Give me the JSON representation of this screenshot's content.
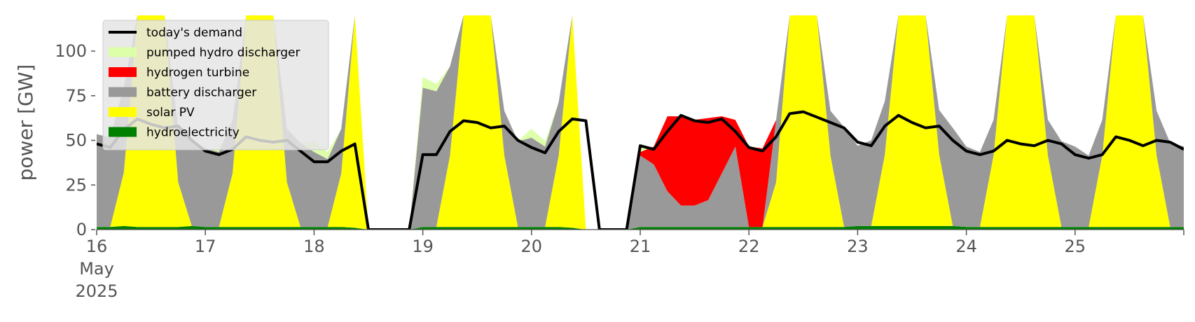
{
  "chart_data": {
    "type": "area",
    "title": "",
    "xlabel": "",
    "ylabel": "power [GW]",
    "ylim": [
      0,
      120
    ],
    "xlim": [
      "2025-05-16",
      "2025-05-26"
    ],
    "y_ticks": [
      0,
      25,
      50,
      75,
      100
    ],
    "y_tick_labels": [
      "0",
      "25",
      "50",
      "75",
      "100"
    ],
    "x_ticks": [
      {
        "date": "2025-05-16",
        "lines": [
          "16",
          "May",
          "2025"
        ]
      },
      {
        "date": "2025-05-17",
        "lines": [
          "17"
        ]
      },
      {
        "date": "2025-05-18",
        "lines": [
          "18"
        ]
      },
      {
        "date": "2025-05-19",
        "lines": [
          "19"
        ]
      },
      {
        "date": "2025-05-20",
        "lines": [
          "20"
        ]
      },
      {
        "date": "2025-05-21",
        "lines": [
          "21"
        ]
      },
      {
        "date": "2025-05-22",
        "lines": [
          "22"
        ]
      },
      {
        "date": "2025-05-23",
        "lines": [
          "23"
        ]
      },
      {
        "date": "2025-05-24",
        "lines": [
          "24"
        ]
      },
      {
        "date": "2025-05-25",
        "lines": [
          "25"
        ]
      }
    ],
    "grid": false,
    "background": "#ffffff",
    "legend": {
      "position": "top-left",
      "entries": [
        {
          "label": "today's demand",
          "kind": "line",
          "color": "#000000"
        },
        {
          "label": "pumped hydro discharger",
          "kind": "patch",
          "color": "#ddffaa"
        },
        {
          "label": "hydrogen turbine",
          "kind": "patch",
          "color": "#ff0000"
        },
        {
          "label": "battery discharger",
          "kind": "patch",
          "color": "#999999"
        },
        {
          "label": "solar PV",
          "kind": "patch",
          "color": "#ffff00"
        },
        {
          "label": "hydroelectricity",
          "kind": "patch",
          "color": "#008000"
        }
      ]
    },
    "x": [
      "2025-05-16 00:00",
      "2025-05-16 03:00",
      "2025-05-16 06:00",
      "2025-05-16 09:00",
      "2025-05-16 12:00",
      "2025-05-16 15:00",
      "2025-05-16 18:00",
      "2025-05-16 21:00",
      "2025-05-17 00:00",
      "2025-05-17 03:00",
      "2025-05-17 06:00",
      "2025-05-17 09:00",
      "2025-05-17 12:00",
      "2025-05-17 15:00",
      "2025-05-17 18:00",
      "2025-05-17 21:00",
      "2025-05-18 00:00",
      "2025-05-18 03:00",
      "2025-05-18 06:00",
      "2025-05-18 09:00",
      "2025-05-18 12:00",
      "2025-05-18 15:00",
      "2025-05-18 18:00",
      "2025-05-18 21:00",
      "2025-05-19 00:00",
      "2025-05-19 03:00",
      "2025-05-19 06:00",
      "2025-05-19 09:00",
      "2025-05-19 12:00",
      "2025-05-19 15:00",
      "2025-05-19 18:00",
      "2025-05-19 21:00",
      "2025-05-20 00:00",
      "2025-05-20 03:00",
      "2025-05-20 06:00",
      "2025-05-20 09:00",
      "2025-05-20 12:00",
      "2025-05-20 15:00",
      "2025-05-20 18:00",
      "2025-05-20 21:00",
      "2025-05-21 00:00",
      "2025-05-21 03:00",
      "2025-05-21 06:00",
      "2025-05-21 09:00",
      "2025-05-21 12:00",
      "2025-05-21 15:00",
      "2025-05-21 18:00",
      "2025-05-21 21:00",
      "2025-05-22 00:00",
      "2025-05-22 03:00",
      "2025-05-22 06:00",
      "2025-05-22 09:00",
      "2025-05-22 12:00",
      "2025-05-22 15:00",
      "2025-05-22 18:00",
      "2025-05-22 21:00",
      "2025-05-23 00:00",
      "2025-05-23 03:00",
      "2025-05-23 06:00",
      "2025-05-23 09:00",
      "2025-05-23 12:00",
      "2025-05-23 15:00",
      "2025-05-23 18:00",
      "2025-05-23 21:00",
      "2025-05-24 00:00",
      "2025-05-24 03:00",
      "2025-05-24 06:00",
      "2025-05-24 09:00",
      "2025-05-24 12:00",
      "2025-05-24 15:00",
      "2025-05-24 18:00",
      "2025-05-24 21:00",
      "2025-05-25 00:00",
      "2025-05-25 03:00",
      "2025-05-25 06:00",
      "2025-05-25 09:00",
      "2025-05-25 12:00",
      "2025-05-25 15:00",
      "2025-05-25 18:00",
      "2025-05-25 21:00",
      "2025-05-26 00:00"
    ],
    "series": [
      {
        "name": "hydroelectricity",
        "kind": "stacked-area",
        "color": "#008000",
        "values": [
          1.5,
          1.5,
          2,
          1.5,
          1.5,
          1.5,
          1.5,
          2,
          1.5,
          1.5,
          1.5,
          1.5,
          1.5,
          1.5,
          1.5,
          1.5,
          1.5,
          1.5,
          1.5,
          1,
          0,
          0,
          0,
          0,
          1.5,
          1.5,
          1.5,
          1.5,
          1.5,
          1.5,
          1.5,
          1.5,
          1.5,
          1.5,
          1.5,
          1,
          0,
          0,
          0,
          0,
          1.5,
          1.5,
          1.5,
          1.5,
          1.5,
          1.5,
          1.5,
          1.5,
          1.5,
          1.5,
          1.5,
          1.5,
          1.5,
          1.5,
          1.5,
          1.5,
          2,
          2,
          2,
          2,
          2,
          2,
          2,
          2,
          1.5,
          1.5,
          1.5,
          1.5,
          1.5,
          1.5,
          1.5,
          1.5,
          1.5,
          1.5,
          1.5,
          1.5,
          1.5,
          1.5,
          1.5,
          1.5,
          1.5
        ]
      },
      {
        "name": "solar PV",
        "kind": "stacked-area",
        "color": "#ffff00",
        "values": [
          0,
          0,
          30,
          130,
          130,
          130,
          25,
          0,
          0,
          0,
          30,
          130,
          130,
          130,
          25,
          0,
          0,
          0,
          30,
          130,
          0,
          0,
          0,
          0,
          0,
          0,
          40,
          130,
          130,
          130,
          40,
          0,
          0,
          0,
          40,
          130,
          0,
          0,
          0,
          0,
          0,
          0,
          0,
          0,
          0,
          0,
          0,
          0,
          0,
          0,
          25,
          130,
          130,
          130,
          40,
          0,
          0,
          0,
          40,
          130,
          130,
          130,
          40,
          0,
          0,
          0,
          40,
          130,
          130,
          130,
          40,
          0,
          0,
          0,
          40,
          130,
          130,
          130,
          40,
          0,
          0
        ]
      },
      {
        "name": "battery discharger",
        "kind": "stacked-area",
        "color": "#999999",
        "values": [
          52,
          50,
          48,
          0,
          0,
          0,
          30,
          47,
          44,
          42,
          30,
          0,
          0,
          0,
          30,
          47,
          42,
          38,
          25,
          0,
          0,
          0,
          0,
          0,
          78,
          76,
          50,
          0,
          0,
          0,
          25,
          48,
          50,
          45,
          30,
          0,
          0,
          0,
          0,
          0,
          40,
          35,
          20,
          12,
          12,
          15,
          30,
          45,
          0,
          0,
          35,
          0,
          0,
          0,
          25,
          56,
          45,
          48,
          30,
          0,
          0,
          0,
          25,
          55,
          45,
          42,
          20,
          0,
          0,
          0,
          20,
          48,
          45,
          40,
          20,
          0,
          0,
          0,
          25,
          47,
          45
        ]
      },
      {
        "name": "hydrogen turbine",
        "kind": "stacked-area",
        "color": "#ff0000",
        "values": [
          0,
          0,
          0,
          0,
          0,
          0,
          0,
          0,
          0,
          0,
          0,
          0,
          0,
          0,
          0,
          0,
          0,
          0,
          0,
          0,
          0,
          0,
          0,
          0,
          0,
          0,
          0,
          0,
          0,
          0,
          0,
          0,
          0,
          0,
          0,
          0,
          0,
          0,
          0,
          0,
          2,
          10,
          42,
          50,
          48,
          46,
          32,
          15,
          45,
          44,
          0,
          0,
          0,
          0,
          0,
          0,
          0,
          0,
          0,
          0,
          0,
          0,
          0,
          0,
          0,
          0,
          0,
          0,
          0,
          0,
          0,
          0,
          0,
          0,
          0,
          0,
          0,
          0,
          0,
          0,
          0
        ]
      },
      {
        "name": "pumped hydro discharger",
        "kind": "stacked-area",
        "color": "#ddffaa",
        "values": [
          0,
          0,
          0,
          0,
          0,
          0,
          0,
          0,
          0,
          2,
          0,
          0,
          0,
          0,
          0,
          0,
          6,
          4,
          0,
          0,
          0,
          0,
          0,
          0,
          6,
          4,
          0,
          0,
          0,
          0,
          0,
          0,
          5,
          3,
          0,
          0,
          0,
          0,
          0,
          0,
          3,
          0,
          0,
          0,
          0,
          0,
          0,
          0,
          0,
          0,
          0,
          0,
          0,
          0,
          0,
          0,
          0,
          0,
          0,
          0,
          0,
          0,
          0,
          0,
          0,
          0,
          0,
          0,
          0,
          0,
          0,
          0,
          0,
          0,
          0,
          0,
          0,
          0,
          0,
          0,
          0
        ]
      },
      {
        "name": "today's demand",
        "kind": "line",
        "color": "#000000",
        "values": [
          48,
          46,
          56,
          62,
          59,
          57,
          58,
          50,
          44,
          42,
          45,
          52,
          50,
          49,
          50,
          44,
          38,
          38,
          44,
          48,
          0,
          0,
          0,
          0,
          42,
          42,
          55,
          61,
          60,
          57,
          58,
          50,
          46,
          43,
          55,
          62,
          61,
          0,
          0,
          0,
          47,
          45,
          55,
          64,
          61,
          60,
          62,
          55,
          46,
          44,
          52,
          65,
          66,
          63,
          60,
          57,
          49,
          47,
          58,
          64,
          60,
          57,
          58,
          50,
          44,
          42,
          44,
          50,
          48,
          47,
          50,
          48,
          42,
          40,
          42,
          52,
          50,
          47,
          50,
          49,
          45
        ]
      }
    ]
  }
}
